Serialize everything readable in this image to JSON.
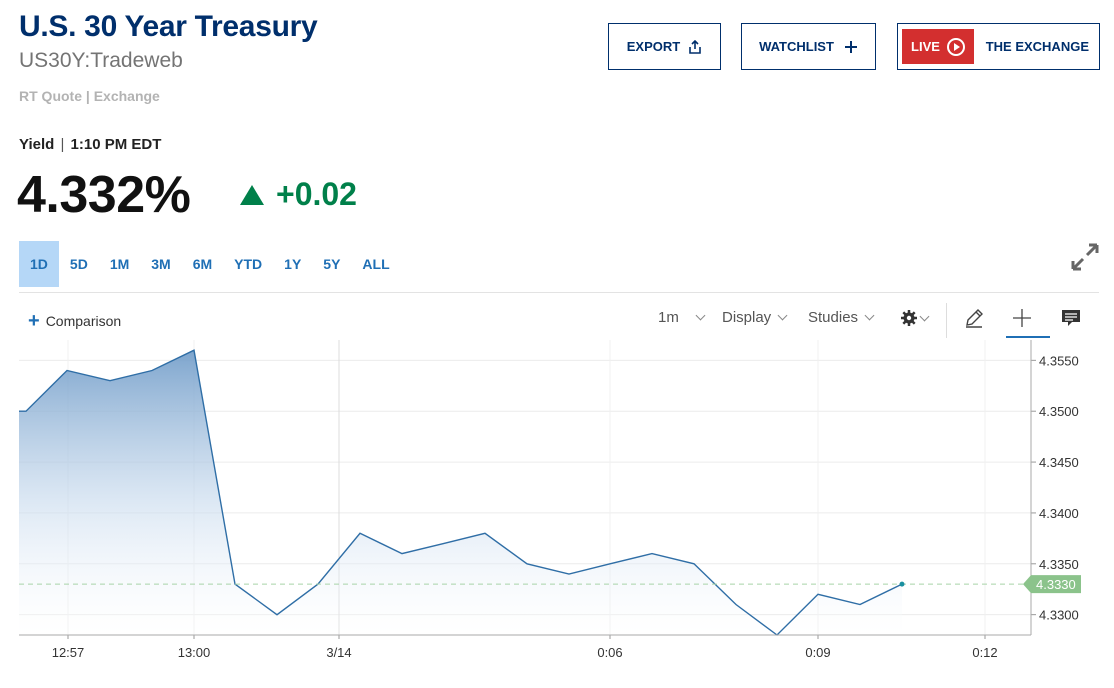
{
  "header": {
    "title": "U.S. 30 Year Treasury",
    "symbol": "US30Y:Tradeweb",
    "quote_source": "RT Quote | Exchange"
  },
  "actions": {
    "export_label": "EXPORT",
    "watchlist_label": "WATCHLIST",
    "live_label": "LIVE",
    "exchange_label": "THE EXCHANGE"
  },
  "quote": {
    "yield_label": "Yield",
    "time": "1:10 PM EDT",
    "price": "4.332%",
    "change": "+0.02",
    "change_direction": "up"
  },
  "ranges": [
    "1D",
    "5D",
    "1M",
    "3M",
    "6M",
    "YTD",
    "1Y",
    "5Y",
    "ALL"
  ],
  "active_range": "1D",
  "toolbar": {
    "comparison_label": "Comparison",
    "interval_label": "1m",
    "display_label": "Display",
    "studies_label": "Studies",
    "icons": [
      "gear-icon",
      "pencil-icon",
      "crosshair-icon",
      "comment-icon",
      "expand-icon"
    ]
  },
  "colors": {
    "brand": "#002f6c",
    "accent": "#1f6fb5",
    "positive": "#00804a",
    "live_red": "#d32f2f",
    "line": "#2f6ea6",
    "last_price_tag": "#8bc38b"
  },
  "chart_data": {
    "type": "area",
    "x_ticks": [
      "12:57",
      "13:00",
      "3/14",
      "0:06",
      "0:09",
      "0:12"
    ],
    "y_ticks": [
      "4.3550",
      "4.3500",
      "4.3450",
      "4.3400",
      "4.3350",
      "4.3300"
    ],
    "ylim": [
      4.328,
      4.357
    ],
    "last_value_label": "4.3330",
    "series": [
      {
        "values": [
          4.35,
          4.35,
          4.354,
          4.353,
          4.354,
          4.356,
          4.333,
          4.33,
          4.333,
          4.338,
          4.336,
          4.337,
          4.338,
          4.335,
          4.334,
          4.335,
          4.336,
          4.335,
          4.331,
          4.328,
          4.332,
          4.331,
          4.333
        ]
      }
    ]
  }
}
